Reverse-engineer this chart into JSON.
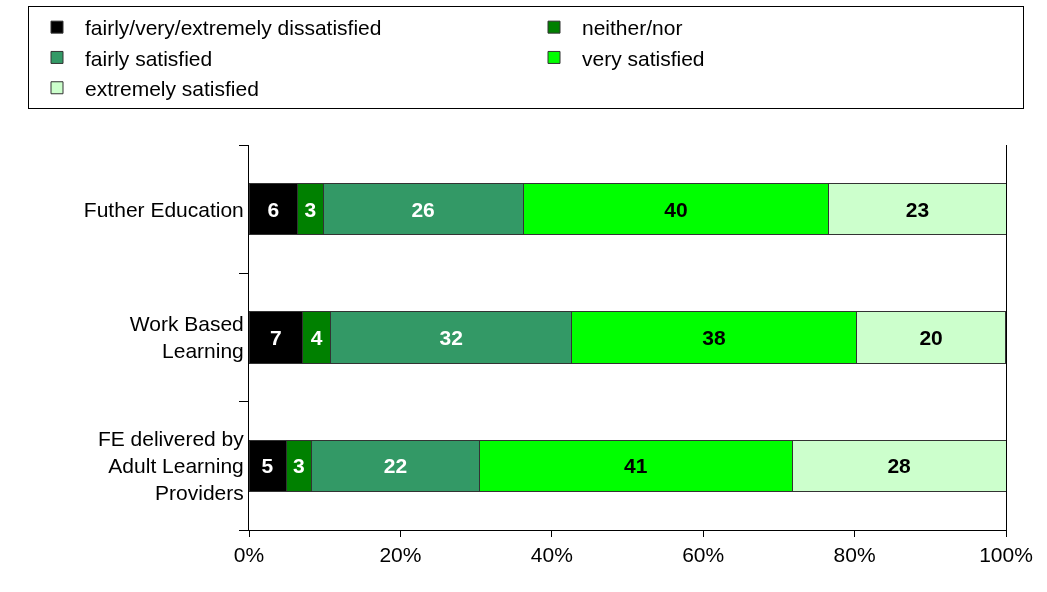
{
  "chart_data": {
    "type": "bar",
    "orientation": "horizontal",
    "stacked": true,
    "categories": [
      "Futher Education",
      "Work Based Learning",
      "FE delivered by Adult Learning Providers"
    ],
    "series": [
      {
        "name": "fairly/very/extremely dissatisfied",
        "color": "#000000",
        "values": [
          6.4,
          7.1,
          4.9
        ],
        "value_labels": [
          "6",
          "7",
          "5"
        ]
      },
      {
        "name": "neither/nor",
        "color": "#008000",
        "values": [
          3.4,
          3.7,
          3.4
        ],
        "value_labels": [
          "3",
          "4",
          "3"
        ]
      },
      {
        "name": "fairly satisfied",
        "color": "#339966",
        "values": [
          26.4,
          31.8,
          22.1
        ],
        "value_labels": [
          "26",
          "32",
          "22"
        ]
      },
      {
        "name": "very satisfied",
        "color": "#00ff00",
        "values": [
          40.4,
          37.7,
          41.4
        ],
        "value_labels": [
          "40",
          "38",
          "41"
        ]
      },
      {
        "name": "extremely satisfied",
        "color": "#ccffcc",
        "values": [
          23.4,
          19.6,
          28.2
        ],
        "value_labels": [
          "23",
          "20",
          "28"
        ]
      }
    ],
    "xlim": [
      0,
      100
    ],
    "xticks": [
      {
        "value": 0,
        "label": "0%"
      },
      {
        "value": 20,
        "label": "20%"
      },
      {
        "value": 40,
        "label": "40%"
      },
      {
        "value": 60,
        "label": "60%"
      },
      {
        "value": 80,
        "label": "80%"
      },
      {
        "value": 100,
        "label": "100%"
      }
    ],
    "legend": "top"
  }
}
